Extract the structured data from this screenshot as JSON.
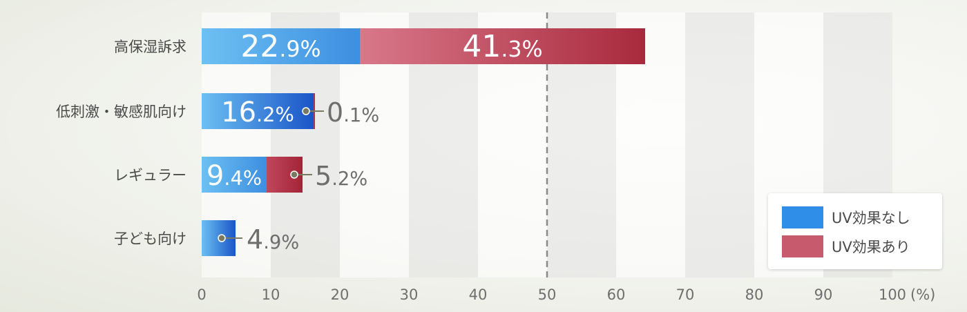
{
  "chart_data": {
    "type": "bar",
    "orientation": "horizontal",
    "stacked": true,
    "categories": [
      "高保湿訴求",
      "低刺激・敏感肌向け",
      "レギュラー",
      "子ども向け"
    ],
    "series": [
      {
        "name": "UV効果なし",
        "values": [
          22.9,
          16.2,
          9.4,
          4.9
        ],
        "color": "#2e8ee8"
      },
      {
        "name": "UV効果あり",
        "values": [
          41.3,
          0.1,
          5.2,
          0
        ],
        "color": "#c85a6e"
      }
    ],
    "value_labels": [
      [
        "22.9%",
        "41.3%"
      ],
      [
        "16.2%",
        "0.1%"
      ],
      [
        "9.4%",
        "5.2%"
      ],
      [
        "4.9%",
        ""
      ]
    ],
    "xlim": [
      0,
      100
    ],
    "xticks": [
      0,
      10,
      20,
      30,
      40,
      50,
      60,
      70,
      80,
      90,
      100
    ],
    "tick_labels": [
      "0",
      "10",
      "20",
      "30",
      "40",
      "50",
      "60",
      "70",
      "80",
      "90",
      "100"
    ],
    "unit": "(%)",
    "reference_line": 50,
    "legend_position": "bottom-right",
    "grid": "alternating column bands"
  }
}
